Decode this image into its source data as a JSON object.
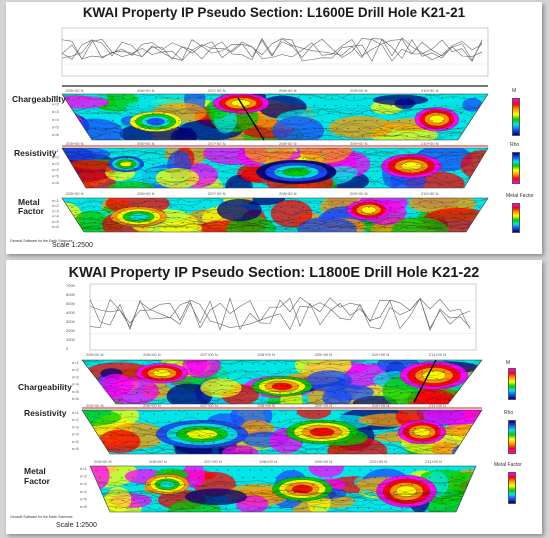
{
  "panels": [
    {
      "title": "KWAI Property IP Pseudo Section: L1600E Drill Hole K21-21",
      "header_left": [
        "M",
        "Rho",
        "Metal Factor"
      ],
      "header_right": [
        "Metal Factor",
        "M",
        "Rho"
      ],
      "sections": [
        {
          "label": "Chargeability",
          "legend": "M"
        },
        {
          "label": "Resistivity",
          "legend": "Rho"
        },
        {
          "label": "Metal\nFactor",
          "legend": "Metal Factor"
        }
      ],
      "stations": [
        "205+00 N",
        "206+00 N",
        "207+00 N",
        "208+00 N",
        "209+00 N",
        "210+00 N"
      ],
      "scale": "Scale 1:2500",
      "footer": "Geosoft Software for the Earth Sciences"
    },
    {
      "title": "KWAI Property IP Pseudo Section: L1800E Drill Hole K21-22",
      "header_left": [
        "Rho",
        "Metal Factor"
      ],
      "header_right": [
        "Metal Factor"
      ],
      "profile_ticks": [
        "7000",
        "6000",
        "5000",
        "4000",
        "3000",
        "2000",
        "1000",
        "0"
      ],
      "sections": [
        {
          "label": "Chargeability",
          "legend": "M"
        },
        {
          "label": "Resistivity",
          "legend": "Rho"
        },
        {
          "label": "Metal\nFactor",
          "legend": "Metal Factor"
        }
      ],
      "stations": [
        "205+00 N",
        "206+00 N",
        "207+00 N",
        "208+00 N",
        "209+00 N",
        "210+00 N",
        "211+00 N"
      ],
      "scale": "Scale 1:2500",
      "footer": "Geosoft Software for the Earth Sciences"
    }
  ],
  "colors": {
    "ramp": [
      "#ff00ff",
      "#ff0000",
      "#ff9900",
      "#ffff00",
      "#00cc00",
      "#00e5e5",
      "#1a4dff",
      "#000080"
    ],
    "drillhole": "#000000",
    "topline": "#cc2222"
  }
}
